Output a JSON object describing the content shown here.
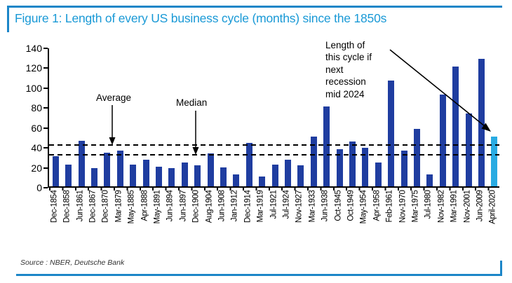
{
  "figure": {
    "title": "Figure 1: Length of every US business cycle (months) since the 1850s",
    "source": "Source : NBER, Deutsche Bank"
  },
  "colors": {
    "title_blue": "#1999D6",
    "rule_blue": "#1C86C8",
    "bar_navy": "#1F3DA0",
    "bar_highlight": "#29ABE2",
    "axis_black": "#000000"
  },
  "chart_data": {
    "type": "bar",
    "title": "Length of every US business cycle (months) since the 1850s",
    "xlabel": "",
    "ylabel": "",
    "ylim": [
      0,
      140
    ],
    "yticks": [
      0,
      20,
      40,
      60,
      80,
      100,
      120,
      140
    ],
    "grid": false,
    "legend": "none",
    "categories": [
      "Dec-1854",
      "Dec-1858",
      "Jun-1861",
      "Dec-1867",
      "Dec-1870",
      "Mar-1879",
      "May-1885",
      "Apr-1888",
      "May-1891",
      "Jun-1894",
      "Jun-1897",
      "Dec-1900",
      "Aug-1904",
      "Jun-1908",
      "Jan-1912",
      "Dec-1914",
      "Mar-1919",
      "Jul-1921",
      "Jul-1924",
      "Nov-1927",
      "Mar-1933",
      "Jun-1938",
      "Oct-1945",
      "Oct-1949",
      "May-1954",
      "Apr-1958",
      "Feb-1961",
      "Nov-1970",
      "Mar-1975",
      "Jul-1980",
      "Nov-1982",
      "Mar-1991",
      "Nov-2001",
      "Jun-2009",
      "April-2020"
    ],
    "values": [
      30,
      22,
      46,
      18,
      34,
      36,
      22,
      27,
      20,
      18,
      24,
      21,
      33,
      19,
      12,
      44,
      10,
      22,
      27,
      21,
      50,
      80,
      37,
      45,
      39,
      24,
      106,
      36,
      58,
      12,
      92,
      120,
      73,
      128,
      50
    ],
    "highlight": {
      "index": 34,
      "category": "April-2020",
      "color": "#29ABE2"
    },
    "reference_lines": [
      {
        "label": "Average",
        "value": 41.4
      },
      {
        "label": "Median",
        "value": 31.5
      }
    ],
    "annotations": [
      {
        "id": "average-label",
        "text": "Average"
      },
      {
        "id": "median-label",
        "text": "Median"
      },
      {
        "id": "cycle-note",
        "lines": [
          "Length of",
          "this cycle if",
          "next",
          "recession",
          "mid 2024"
        ]
      }
    ]
  }
}
